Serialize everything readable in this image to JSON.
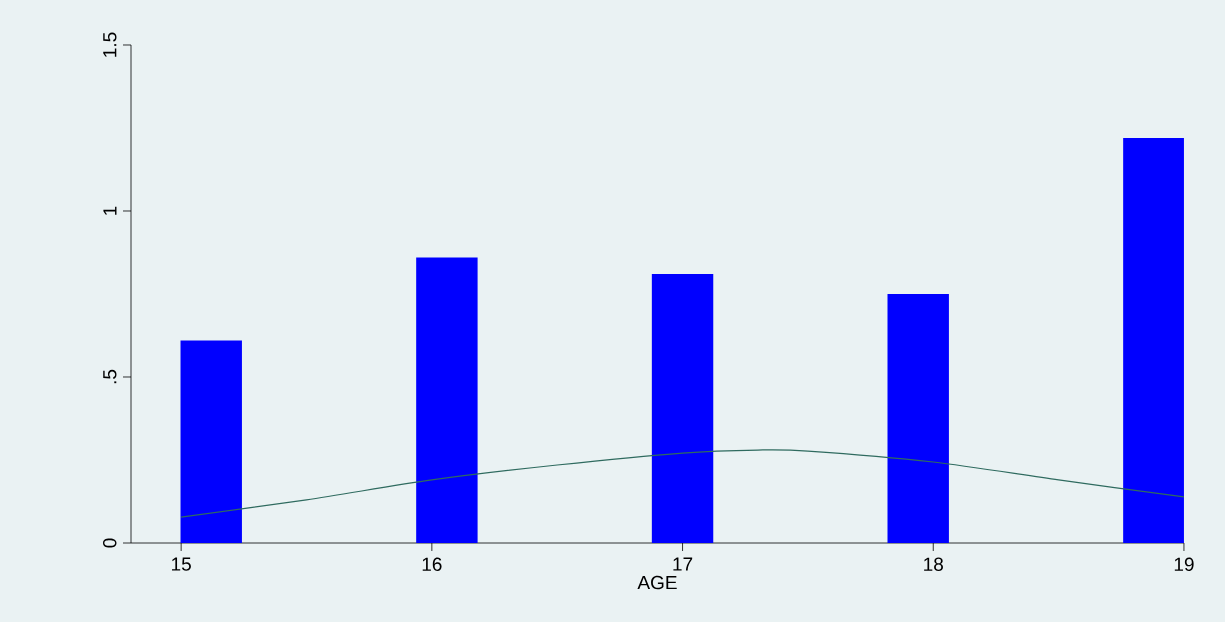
{
  "chart_data": {
    "type": "bar",
    "xlabel": "AGE",
    "xlim": [
      14.8,
      19
    ],
    "ylim": [
      0,
      1.5
    ],
    "xticks": [
      15,
      16,
      17,
      18,
      19
    ],
    "yticks": [
      0,
      {
        "value": 0.5,
        "label": ".5"
      },
      1,
      1.5
    ],
    "series": [
      {
        "color": "#0000ff",
        "x": [
          15.12,
          16.06,
          17.0,
          17.94,
          18.88
        ],
        "values": [
          0.61,
          0.86,
          0.81,
          0.75,
          1.22
        ]
      },
      {
        "type": "line",
        "color": "#2f6b5f",
        "x": [
          15,
          15.5,
          16,
          16.5,
          17,
          17.3,
          17.5,
          18,
          18.5,
          19
        ],
        "values": [
          0.078,
          0.13,
          0.19,
          0.235,
          0.271,
          0.28,
          0.277,
          0.244,
          0.19,
          0.139
        ]
      }
    ]
  }
}
